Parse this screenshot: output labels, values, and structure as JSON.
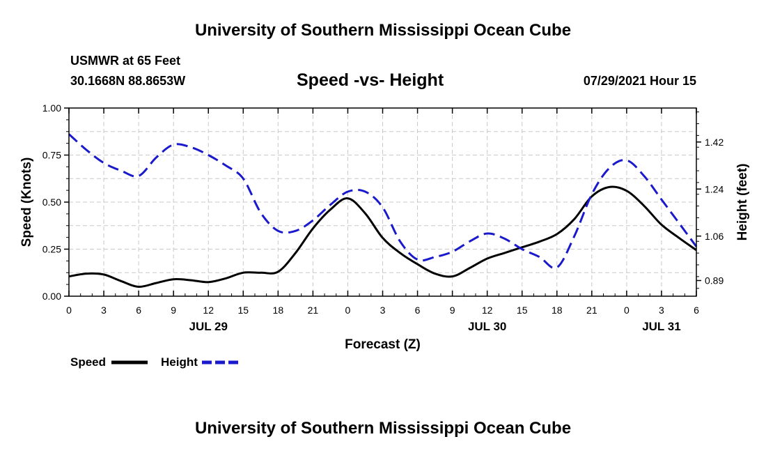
{
  "header": {
    "title": "University of Southern Mississippi Ocean Cube",
    "station": "USMWR at 65 Feet",
    "coords": "30.1668N  88.8653W",
    "subtitle": "Speed -vs- Height",
    "datetime": "07/29/2021 Hour 15"
  },
  "footer": {
    "title": "University of Southern Mississippi Ocean Cube"
  },
  "legend": {
    "speed_label": "Speed",
    "height_label": "Height"
  },
  "colors": {
    "speed": "#000000",
    "height": "#1a1acc",
    "grid": "#c8c8c8"
  },
  "chart_data": {
    "type": "line",
    "title": "Speed -vs- Height",
    "xlabel": "Forecast (Z)",
    "ylabel": "Speed (Knots)",
    "y2label": "Height (feet)",
    "x_range": [
      0,
      54
    ],
    "ylim": [
      0,
      1
    ],
    "y2lim": [
      0.83,
      1.55
    ],
    "x_ticks": [
      0,
      3,
      6,
      9,
      12,
      15,
      18,
      21,
      24,
      27,
      30,
      33,
      36,
      39,
      42,
      45,
      48,
      51,
      54
    ],
    "x_tick_labels": [
      "0",
      "3",
      "6",
      "9",
      "12",
      "15",
      "18",
      "21",
      "0",
      "3",
      "6",
      "9",
      "12",
      "15",
      "18",
      "21",
      "0",
      "3",
      "6"
    ],
    "y_ticks": [
      0,
      0.25,
      0.5,
      0.75,
      1.0
    ],
    "y_tick_labels": [
      "0.00",
      "0.25",
      "0.50",
      "0.75",
      "1.00"
    ],
    "y2_ticks": [
      0.89,
      1.06,
      1.24,
      1.42
    ],
    "y2_tick_labels": [
      "0.89",
      "1.06",
      "1.24",
      "1.42"
    ],
    "date_labels": [
      {
        "x": 12,
        "label": "JUL 29"
      },
      {
        "x": 36,
        "label": "JUL 30"
      },
      {
        "x": 51,
        "label": "JUL 31"
      }
    ],
    "grid": true,
    "series": [
      {
        "name": "Speed",
        "axis": "left",
        "style": "solid",
        "x": [
          0,
          1.5,
          3,
          4.5,
          6,
          7.5,
          9,
          10.5,
          12,
          13.5,
          15,
          16.5,
          18,
          19.5,
          21,
          22.5,
          24,
          25.5,
          27,
          28.5,
          30,
          31.5,
          33,
          34.5,
          36,
          37.5,
          39,
          40.5,
          42,
          43.5,
          45,
          46.5,
          48,
          49.5,
          51,
          52.5,
          54
        ],
        "values": [
          0.105,
          0.12,
          0.115,
          0.08,
          0.05,
          0.07,
          0.09,
          0.085,
          0.075,
          0.095,
          0.125,
          0.125,
          0.13,
          0.23,
          0.36,
          0.46,
          0.52,
          0.44,
          0.31,
          0.23,
          0.17,
          0.12,
          0.105,
          0.15,
          0.2,
          0.23,
          0.26,
          0.29,
          0.33,
          0.41,
          0.53,
          0.58,
          0.56,
          0.48,
          0.38,
          0.31,
          0.245
        ]
      },
      {
        "name": "Height",
        "axis": "right",
        "style": "dashed",
        "x": [
          0,
          1.5,
          3,
          4.5,
          6,
          7.5,
          9,
          10.5,
          12,
          13.5,
          15,
          16.5,
          18,
          19.5,
          21,
          22.5,
          24,
          25.5,
          27,
          28.5,
          30,
          31.5,
          33,
          34.5,
          36,
          37.5,
          39,
          40.5,
          42,
          43.5,
          45,
          46.5,
          48,
          49.5,
          51,
          52.5,
          54
        ],
        "values": [
          1.45,
          1.39,
          1.34,
          1.31,
          1.29,
          1.36,
          1.41,
          1.4,
          1.37,
          1.33,
          1.28,
          1.15,
          1.08,
          1.08,
          1.12,
          1.18,
          1.23,
          1.23,
          1.17,
          1.04,
          0.97,
          0.98,
          1.0,
          1.04,
          1.07,
          1.05,
          1.01,
          0.98,
          0.94,
          1.06,
          1.22,
          1.32,
          1.35,
          1.29,
          1.2,
          1.11,
          1.02
        ]
      }
    ]
  }
}
